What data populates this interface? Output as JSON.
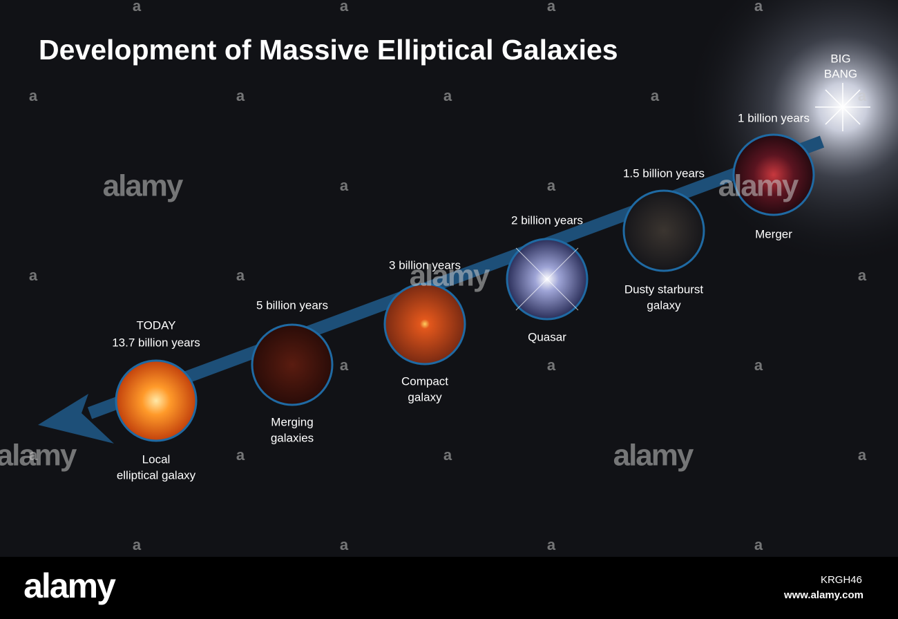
{
  "header": {
    "title": "Development of Massive Elliptical Galaxies"
  },
  "big_bang": [
    "BIG",
    "BANG"
  ],
  "nodes": [
    {
      "time": [
        "TODAY",
        "13.7 billion years"
      ],
      "label": [
        "Local",
        "elliptical galaxy"
      ]
    },
    {
      "time": [
        "5 billion years"
      ],
      "label": [
        "Merging",
        "galaxies"
      ]
    },
    {
      "time": [
        "3 billion years"
      ],
      "label": [
        "Compact",
        "galaxy"
      ]
    },
    {
      "time": [
        "2 billion years"
      ],
      "label": [
        "Quasar"
      ]
    },
    {
      "time": [
        "1.5 billion years"
      ],
      "label": [
        "Dusty starburst",
        "galaxy"
      ]
    },
    {
      "time": [
        "1 billion years"
      ],
      "label": [
        "Merger"
      ]
    }
  ],
  "watermark": {
    "logo": "alamy",
    "mark": "a"
  },
  "footer": {
    "logo": "alamy",
    "id": "KRGH46",
    "url": "www.alamy.com"
  }
}
